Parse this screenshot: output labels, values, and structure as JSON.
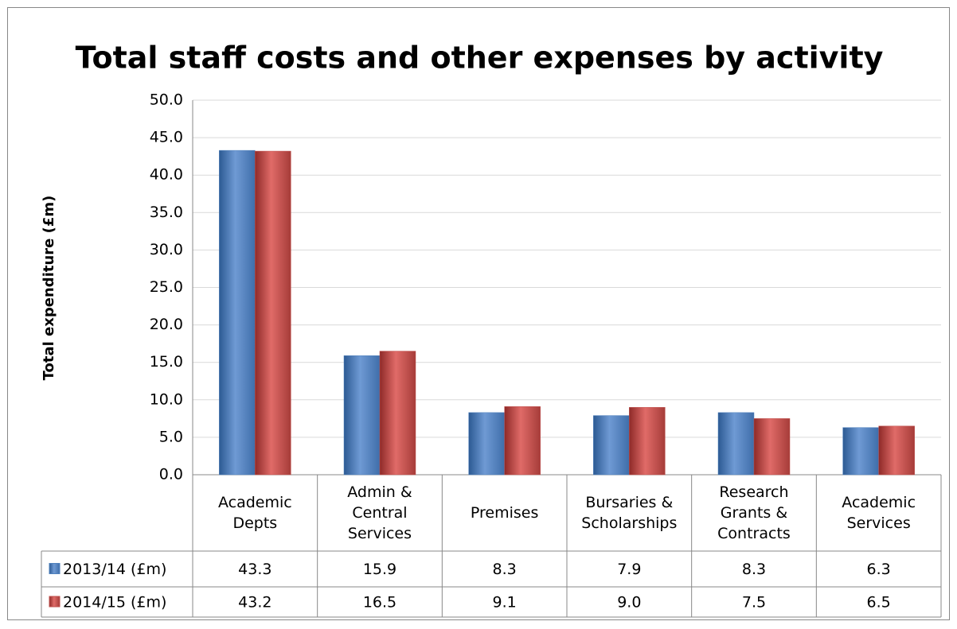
{
  "chart_data": {
    "type": "bar",
    "title": "Total staff costs and other expenses by activity",
    "y_label": "Total expenditure (£m)",
    "categories": [
      "Academic\nDepts",
      "Admin &\nCentral\nServices",
      "Premises",
      "Bursaries &\nScholarships",
      "Research\nGrants &\nContracts",
      "Academic\nServices"
    ],
    "series": [
      {
        "name": "2013/14 (£m)",
        "color": "#4f81bd",
        "values": [
          43.3,
          15.9,
          8.3,
          7.9,
          8.3,
          6.3
        ],
        "value_labels": [
          "43.3",
          "15.9",
          "8.3",
          "7.9",
          "8.3",
          "6.3"
        ]
      },
      {
        "name": "2014/15 (£m)",
        "color": "#c0504d",
        "values": [
          43.2,
          16.5,
          9.1,
          9.0,
          7.5,
          6.5
        ],
        "value_labels": [
          "43.2",
          "16.5",
          "9.1",
          "9.0",
          "7.5",
          "6.5"
        ]
      }
    ],
    "ylim": [
      0,
      50
    ],
    "yticks": [
      {
        "value": 0,
        "label": "0.0"
      },
      {
        "value": 5,
        "label": "5.0"
      },
      {
        "value": 10,
        "label": "10.0"
      },
      {
        "value": 15,
        "label": "15.0"
      },
      {
        "value": 20,
        "label": "20.0"
      },
      {
        "value": 25,
        "label": "25.0"
      },
      {
        "value": 30,
        "label": "30.0"
      },
      {
        "value": 35,
        "label": "35.0"
      },
      {
        "value": 40,
        "label": "40.0"
      },
      {
        "value": 45,
        "label": "45.0"
      },
      {
        "value": 50,
        "label": "50.0"
      }
    ],
    "grid": true
  }
}
